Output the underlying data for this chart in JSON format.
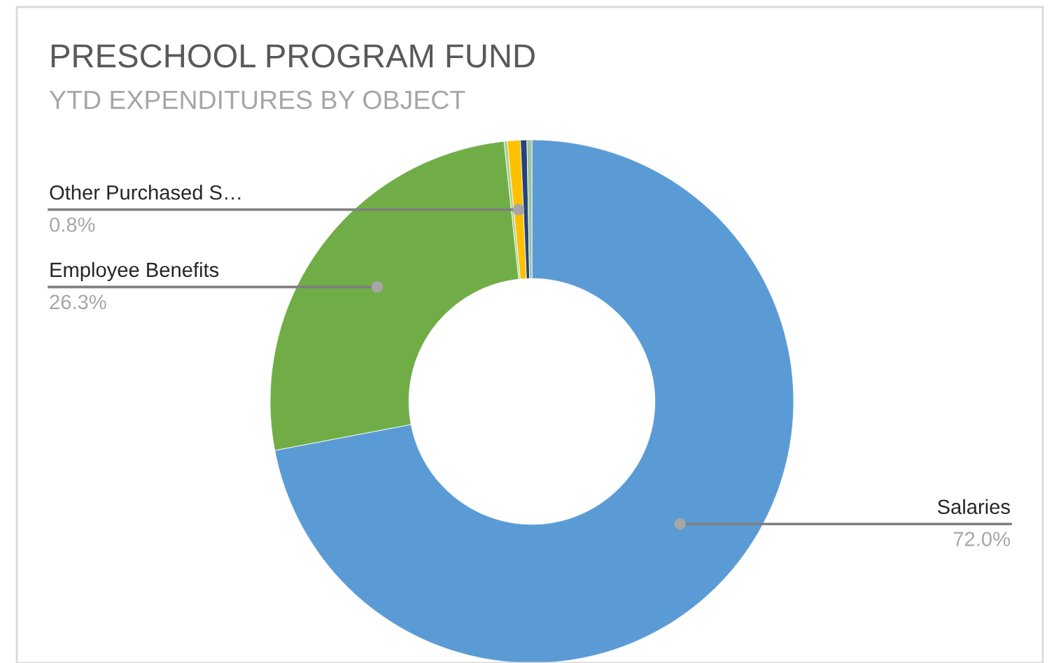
{
  "chart_data": {
    "type": "donut",
    "title": "PRESCHOOL PROGRAM FUND",
    "subtitle": "YTD EXPENDITURES BY OBJECT",
    "categories": [
      "Salaries",
      "Employee Benefits",
      null,
      "Other Purchased S…",
      null,
      null
    ],
    "values": [
      72.0,
      26.3,
      0.2,
      0.8,
      0.4,
      0.3
    ],
    "colors": [
      "#5b9bd5",
      "#70ad47",
      "#a9d18e",
      "#ffc000",
      "#264478",
      "#9dc3a0"
    ],
    "value_labels": [
      "72.0%",
      "26.3%",
      null,
      "0.8%",
      null,
      null
    ],
    "legend": false
  }
}
